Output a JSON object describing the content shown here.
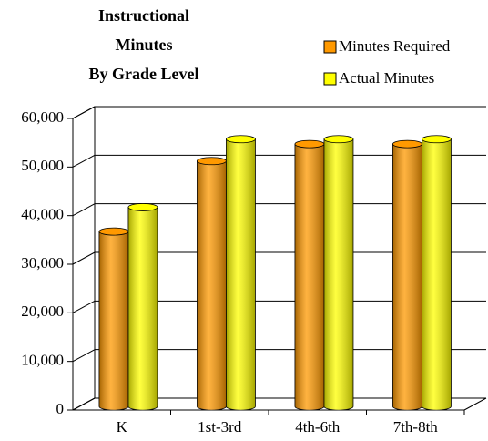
{
  "chart_data": {
    "type": "bar3d",
    "title": [
      "Instructional",
      "Minutes",
      "By Grade Level"
    ],
    "categories": [
      "K",
      "1st-3rd",
      "4th-6th",
      "7th-8th"
    ],
    "series": [
      {
        "name": "Minutes Required",
        "color": "#ff9900",
        "values": [
          36000,
          50500,
          54000,
          54000
        ]
      },
      {
        "name": "Actual Minutes",
        "color": "#ffff00",
        "values": [
          41000,
          55000,
          55000,
          55000
        ]
      }
    ],
    "ylim": [
      0,
      60000
    ],
    "yticks": [
      {
        "value": 0,
        "label": "0"
      },
      {
        "value": 10000,
        "label": "10,000"
      },
      {
        "value": 20000,
        "label": "20,000"
      },
      {
        "value": 30000,
        "label": "30,000"
      },
      {
        "value": 40000,
        "label": "40,000"
      },
      {
        "value": 50000,
        "label": "50,000"
      },
      {
        "value": 60000,
        "label": "60,000"
      }
    ],
    "grid": true,
    "legend": "top-right"
  }
}
